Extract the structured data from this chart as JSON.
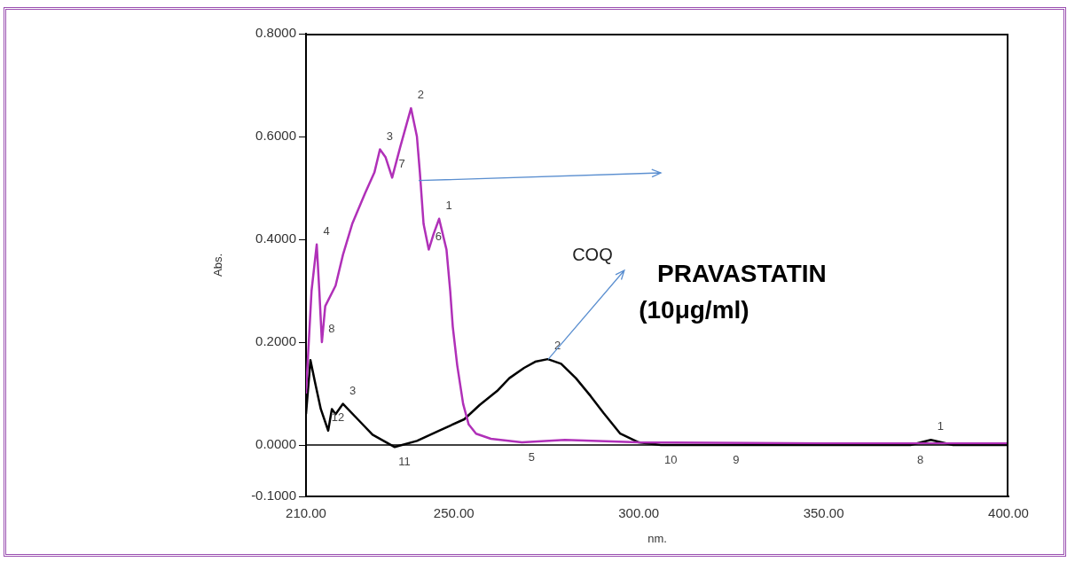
{
  "chart_data": {
    "type": "line",
    "xlabel": "nm.",
    "ylabel": "Abs.",
    "xlim": [
      210,
      400
    ],
    "xticks": [
      {
        "value": 210,
        "label": "210.00"
      },
      {
        "value": 250,
        "label": "250.00"
      },
      {
        "value": 300,
        "label": "300.00"
      },
      {
        "value": 350,
        "label": "350.00"
      },
      {
        "value": 400,
        "label": "400.00"
      }
    ],
    "ylim": [
      -0.1,
      0.8
    ],
    "yticks": [
      {
        "value": -0.1,
        "label": "-0.1000"
      },
      {
        "value": 0,
        "label": "0.0000"
      },
      {
        "value": 0.2,
        "label": "0.2000"
      },
      {
        "value": 0.4,
        "label": "0.4000"
      },
      {
        "value": 0.6,
        "label": "0.6000"
      },
      {
        "value": 0.8,
        "label": "0.8000"
      }
    ],
    "grid": false,
    "marker": "none",
    "line_style": "solid",
    "series": [
      {
        "color": "#b030b8",
        "x": [
          210,
          211.5,
          212.9,
          213.6,
          214.3,
          215.2,
          218,
          220,
          222.5,
          226,
          228.5,
          230,
          231.5,
          233.3,
          235.5,
          238.4,
          240,
          240.8,
          241.8,
          243.2,
          244.5,
          246,
          248,
          249,
          249.7,
          250.9,
          252.5,
          254,
          256,
          260,
          268.4,
          280,
          300,
          350,
          400
        ],
        "values": [
          0.1,
          0.3,
          0.39,
          0.3,
          0.2,
          0.27,
          0.31,
          0.37,
          0.43,
          0.49,
          0.53,
          0.575,
          0.56,
          0.52,
          0.58,
          0.655,
          0.6,
          0.53,
          0.43,
          0.38,
          0.41,
          0.44,
          0.38,
          0.3,
          0.23,
          0.155,
          0.08,
          0.04,
          0.022,
          0.012,
          0.005,
          0.01,
          0.005,
          0.003,
          0.003
        ]
      },
      {
        "color": "#000000",
        "x": [
          210,
          211.2,
          212.5,
          214,
          216,
          217,
          218,
          220,
          224,
          228,
          234,
          240,
          246,
          252.8,
          257,
          261.7,
          265,
          269,
          272,
          275.4,
          279,
          283,
          287,
          290.5,
          295,
          300,
          306,
          323.7,
          373.5,
          379,
          385,
          400
        ],
        "values": [
          0.06,
          0.165,
          0.12,
          0.07,
          0.028,
          0.07,
          0.06,
          0.08,
          0.05,
          0.02,
          -0.004,
          0.008,
          0.028,
          0.05,
          0.078,
          0.105,
          0.13,
          0.15,
          0.162,
          0.167,
          0.158,
          0.13,
          0.095,
          0.062,
          0.022,
          0.005,
          0,
          0,
          0,
          0.01,
          0,
          0
        ]
      }
    ],
    "ref_lines": [
      {
        "axis": "y",
        "value": 0,
        "color": "#000000"
      }
    ],
    "annotations": [
      {
        "text": "4",
        "x": 212.9,
        "y": 0.39
      },
      {
        "text": "8",
        "x": 214.3,
        "y": 0.2
      },
      {
        "text": "3",
        "x": 230,
        "y": 0.575
      },
      {
        "text": "7",
        "x": 233.3,
        "y": 0.52
      },
      {
        "text": "2",
        "x": 238.4,
        "y": 0.655
      },
      {
        "text": "6",
        "x": 243.2,
        "y": 0.38
      },
      {
        "text": "1",
        "x": 246,
        "y": 0.44
      },
      {
        "text": "5",
        "x": 268.4,
        "y": 0.005
      },
      {
        "text": "12",
        "x": 216,
        "y": 0.028
      },
      {
        "text": "3",
        "x": 220,
        "y": 0.08
      },
      {
        "text": "11",
        "x": 234,
        "y": -0.004
      },
      {
        "text": "2",
        "x": 275.4,
        "y": 0.167
      },
      {
        "text": "10",
        "x": 306,
        "y": 0
      },
      {
        "text": "9",
        "x": 323.7,
        "y": 0
      },
      {
        "text": "8",
        "x": 373.5,
        "y": 0
      },
      {
        "text": "1",
        "x": 379,
        "y": 0.01
      },
      {
        "text": "COQ",
        "x": 275.4,
        "y": 0.167
      },
      "PRAVASTATIN",
      "(10μg/ml)"
    ]
  }
}
